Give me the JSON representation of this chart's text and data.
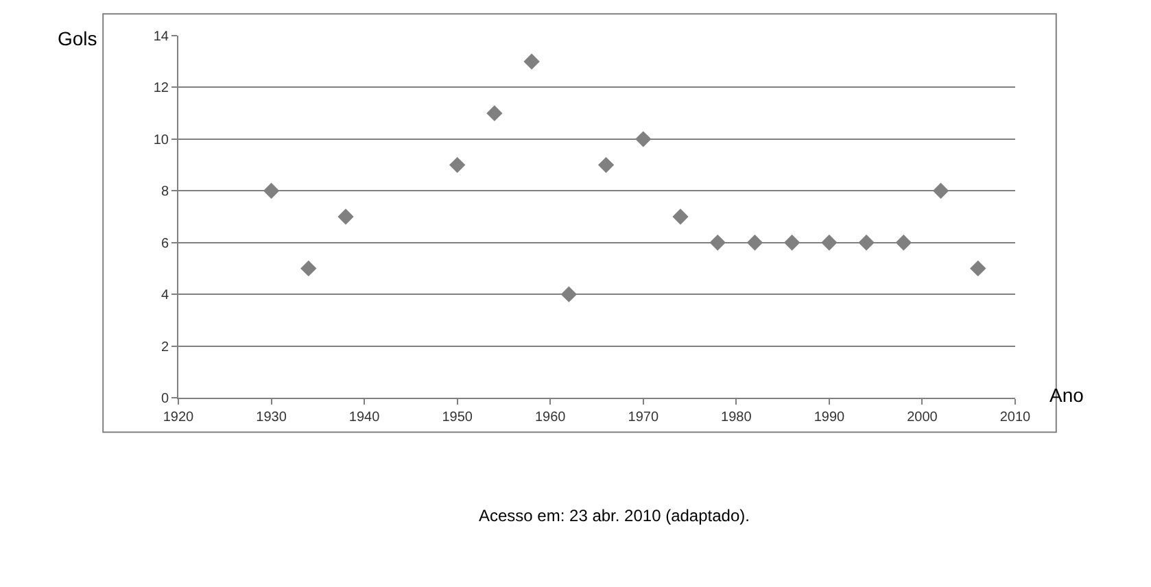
{
  "chart_data": {
    "type": "scatter",
    "xlabel": "Ano",
    "ylabel": "Gols",
    "x": [
      1930,
      1934,
      1938,
      1950,
      1954,
      1958,
      1962,
      1966,
      1970,
      1974,
      1978,
      1982,
      1986,
      1990,
      1994,
      1998,
      2002,
      2006
    ],
    "values": [
      8,
      5,
      7,
      9,
      11,
      13,
      4,
      9,
      10,
      7,
      6,
      6,
      6,
      6,
      6,
      6,
      8,
      5
    ],
    "color": "#808080",
    "marker": "diamond",
    "xlim": [
      1920,
      2010
    ],
    "xticks": [
      1920,
      1930,
      1940,
      1950,
      1960,
      1970,
      1980,
      1990,
      2000,
      2010
    ],
    "ylim": [
      0,
      14
    ],
    "yticks": [
      0,
      2,
      4,
      6,
      8,
      10,
      12,
      14
    ],
    "grid": "y",
    "legend": false,
    "annotations": [
      "Acesso em: 23 abr. 2010 (adaptado)."
    ]
  }
}
